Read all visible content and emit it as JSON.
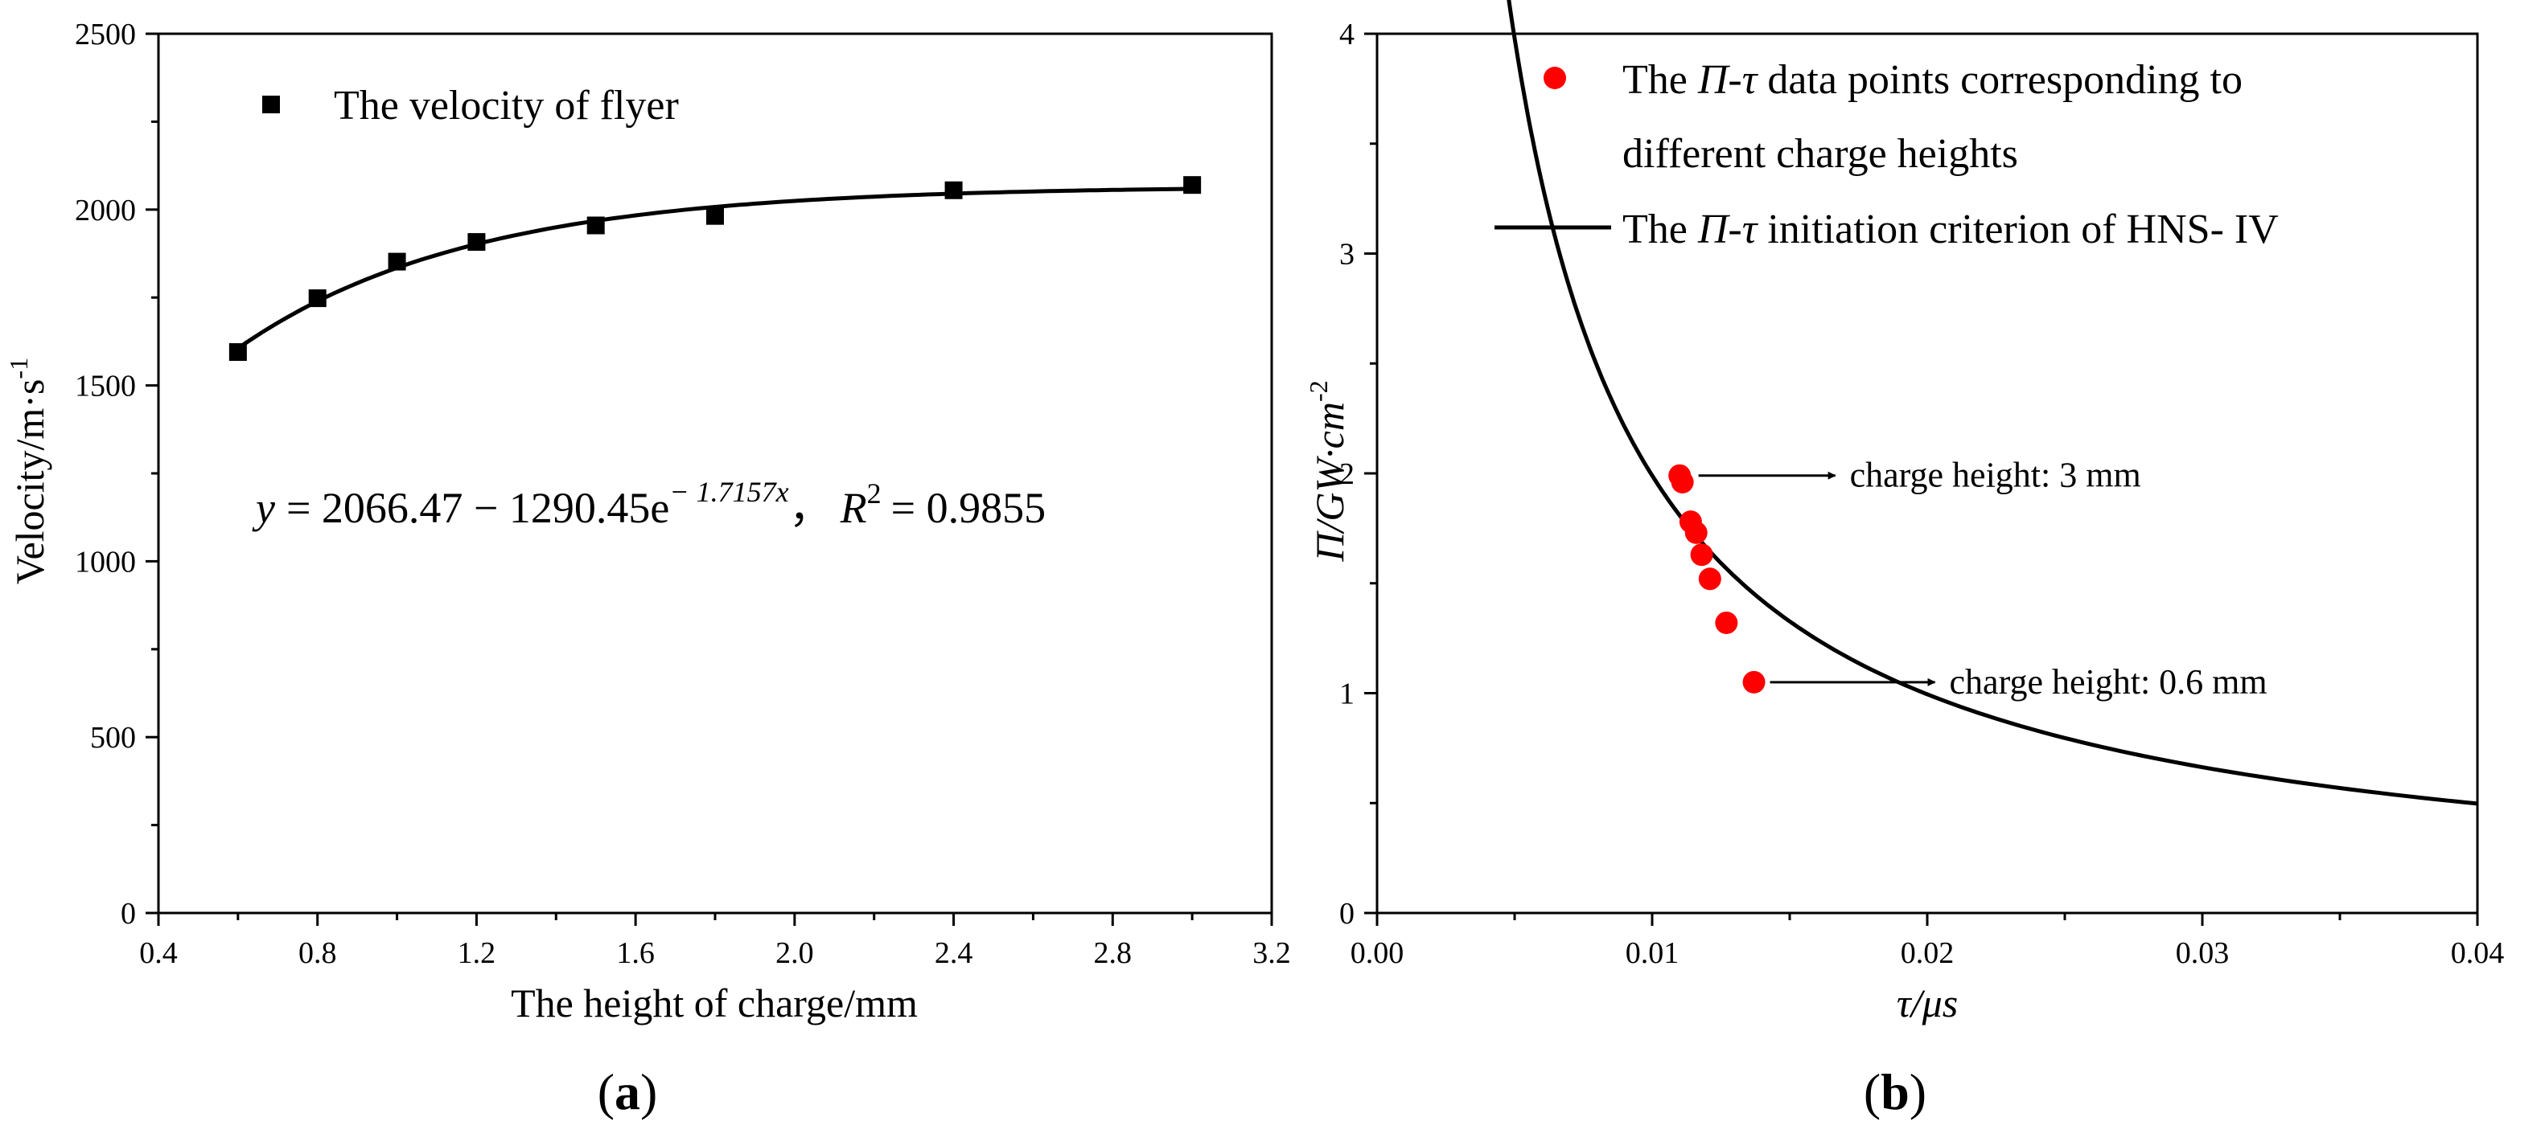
{
  "chart_data": [
    {
      "panel": "(a)",
      "panel_letter": "a",
      "type": "scatter",
      "title": "",
      "xlabel": "The height of charge/mm",
      "ylabel": "Velocity/m·s",
      "ylabel_sup": "-1",
      "xlim": [
        0.4,
        3.2
      ],
      "ylim": [
        0,
        2500
      ],
      "x_ticks": [
        "0.4",
        "0.8",
        "1.2",
        "1.6",
        "2.0",
        "2.4",
        "2.8",
        "3.2"
      ],
      "y_ticks": [
        "0",
        "500",
        "1000",
        "1500",
        "2000",
        "2500"
      ],
      "series": [
        {
          "name": "The velocity of flyer",
          "marker": "square",
          "color": "#000000",
          "x": [
            0.6,
            0.8,
            1.0,
            1.2,
            1.5,
            1.8,
            2.4,
            3.0
          ],
          "y": [
            1595,
            1748,
            1852,
            1908,
            1955,
            1982,
            2055,
            2070
          ]
        }
      ],
      "fit": {
        "model": "exponential",
        "a": 2066.47,
        "b": 1290.45,
        "k": 1.7157,
        "r2": 0.9855,
        "x_range": [
          0.6,
          3.0
        ],
        "color": "#000000"
      },
      "equation": {
        "y": "y",
        "eq1": "= 2066.47 − 1290.45e",
        "exponent": "− 1.7157x",
        "comma": "，",
        "r": "R",
        "r_sup": "2",
        "eq2": "= 0.9855"
      },
      "legend_position": "top-left"
    },
    {
      "panel": "(b)",
      "panel_letter": "b",
      "type": "scatter",
      "title": "",
      "xlabel": "τ/μs",
      "ylabel": "Π/GW·cm",
      "ylabel_sup": "-2",
      "xlim": [
        0.0,
        0.04
      ],
      "ylim": [
        0,
        4
      ],
      "x_ticks": [
        "0.00",
        "0.01",
        "0.02",
        "0.03",
        "0.04"
      ],
      "y_ticks": [
        "0",
        "1",
        "2",
        "3",
        "4"
      ],
      "series": [
        {
          "name": "The Π-τ data points corresponding to different charge heights",
          "legend_line1_a": "The ",
          "legend_line1_sym": "Π-τ",
          "legend_line1_b": " data points corresponding to",
          "legend_line2": "different charge heights",
          "marker": "circle",
          "color": "#ff0000",
          "x": [
            0.011,
            0.0111,
            0.0114,
            0.0116,
            0.0118,
            0.0121,
            0.0127,
            0.0137
          ],
          "y": [
            1.99,
            1.96,
            1.78,
            1.73,
            1.63,
            1.52,
            1.32,
            1.05
          ]
        }
      ],
      "criterion": {
        "name": "The Π-τ initiation criterion of HNS- IV",
        "legend_a": "The ",
        "legend_sym": "Π-τ",
        "legend_b": " initiation criterion of HNS- IV",
        "model": "Π = c / τ",
        "c": 0.0199,
        "tau_range": [
          0.0029,
          0.04
        ],
        "color": "#000000"
      },
      "annotations": [
        {
          "text": "charge height: 3 mm",
          "x": 0.0111,
          "y": 1.99
        },
        {
          "text": "charge height: 0.6 mm",
          "x": 0.0137,
          "y": 1.05
        }
      ],
      "legend_position": "top-right"
    }
  ]
}
